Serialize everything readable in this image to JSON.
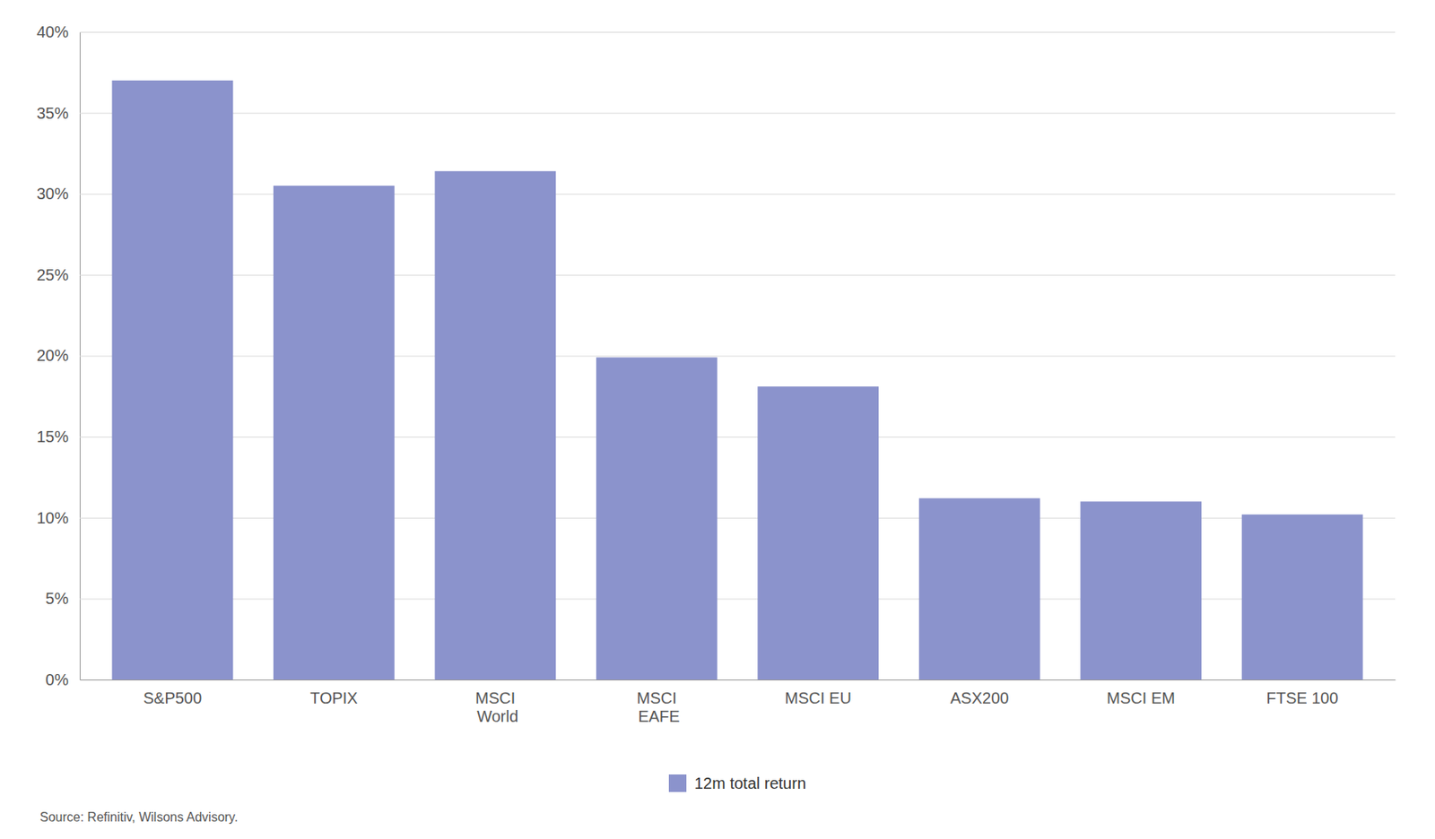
{
  "chart_data": {
    "type": "bar",
    "categories": [
      "S&P500",
      "TOPIX",
      "MSCI\nWorld",
      "MSCI\nEAFE",
      "MSCI EU",
      "ASX200",
      "MSCI EM",
      "FTSE 100"
    ],
    "series": [
      {
        "name": "12m total return",
        "color": "#8b93cc",
        "values": [
          0.37,
          0.305,
          0.314,
          0.199,
          0.181,
          0.112,
          0.11,
          0.102
        ]
      }
    ],
    "ylim": [
      0,
      0.4
    ],
    "yticks": [
      {
        "value": 0,
        "label": "0%"
      },
      {
        "value": 0.05,
        "label": "5%"
      },
      {
        "value": 0.1,
        "label": "10%"
      },
      {
        "value": 0.15,
        "label": "15%"
      },
      {
        "value": 0.2,
        "label": "20%"
      },
      {
        "value": 0.25,
        "label": "25%"
      },
      {
        "value": 0.3,
        "label": "30%"
      },
      {
        "value": 0.35,
        "label": "35%"
      },
      {
        "value": 0.4,
        "label": "40%"
      }
    ],
    "grid": true,
    "legend": "bottom",
    "annotations": [
      "Source: Refinitiv, Wilsons Advisory."
    ]
  }
}
